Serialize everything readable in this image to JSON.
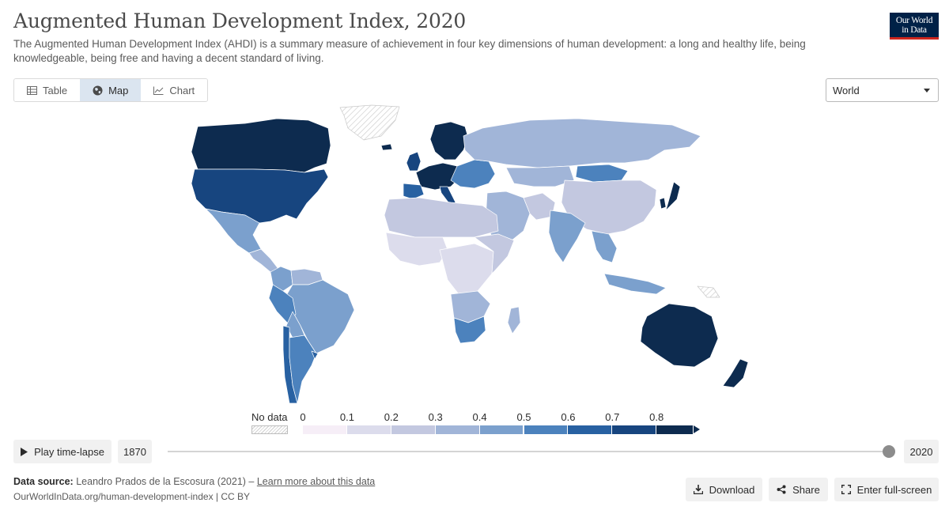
{
  "header": {
    "title": "Augmented Human Development Index, 2020",
    "subtitle": "The Augmented Human Development Index (AHDI) is a summary measure of achievement in four key dimensions of human development: a long and healthy life, being knowledgeable, being free and having a decent standard of living.",
    "logo_line1": "Our World",
    "logo_line2": "in Data"
  },
  "tabs": [
    {
      "label": "Table",
      "icon": "table-icon",
      "active": false
    },
    {
      "label": "Map",
      "icon": "globe-icon",
      "active": true
    },
    {
      "label": "Chart",
      "icon": "line-chart-icon",
      "active": false
    }
  ],
  "region_select": {
    "value": "World"
  },
  "legend": {
    "no_data_label": "No data",
    "ticks": [
      "0",
      "0.1",
      "0.2",
      "0.3",
      "0.4",
      "0.5",
      "0.6",
      "0.7",
      "0.8"
    ],
    "colors": [
      "#f6eef7",
      "#dcdcec",
      "#c3c8e0",
      "#a1b5d8",
      "#7ba0cd",
      "#4c82bd",
      "#2861a2",
      "#17457f",
      "#0d2b4f"
    ]
  },
  "map_data": {
    "year": 2020,
    "regions": [
      {
        "name": "Canada",
        "band": 8
      },
      {
        "name": "United States",
        "band": 7
      },
      {
        "name": "Mexico",
        "band": 4
      },
      {
        "name": "Central America",
        "band": 3
      },
      {
        "name": "Colombia",
        "band": 4
      },
      {
        "name": "Venezuela",
        "band": 3
      },
      {
        "name": "Brazil",
        "band": 4
      },
      {
        "name": "Peru",
        "band": 5
      },
      {
        "name": "Bolivia",
        "band": 4
      },
      {
        "name": "Chile",
        "band": 6
      },
      {
        "name": "Argentina",
        "band": 5
      },
      {
        "name": "Uruguay",
        "band": 6
      },
      {
        "name": "Greenland",
        "band": null
      },
      {
        "name": "Iceland",
        "band": 8
      },
      {
        "name": "Nordic countries",
        "band": 8
      },
      {
        "name": "United Kingdom",
        "band": 7
      },
      {
        "name": "Western Europe",
        "band": 8
      },
      {
        "name": "Spain",
        "band": 6
      },
      {
        "name": "Italy",
        "band": 7
      },
      {
        "name": "Eastern Europe",
        "band": 5
      },
      {
        "name": "Russia",
        "band": 3
      },
      {
        "name": "Kazakhstan",
        "band": 3
      },
      {
        "name": "Mongolia",
        "band": 5
      },
      {
        "name": "China",
        "band": 2
      },
      {
        "name": "Japan",
        "band": 8
      },
      {
        "name": "South Korea",
        "band": 8
      },
      {
        "name": "Middle East",
        "band": 3
      },
      {
        "name": "Iran",
        "band": 2
      },
      {
        "name": "India",
        "band": 4
      },
      {
        "name": "Southeast Asia",
        "band": 4
      },
      {
        "name": "Indonesia",
        "band": 4
      },
      {
        "name": "North Africa",
        "band": 2
      },
      {
        "name": "West Africa",
        "band": 1
      },
      {
        "name": "Central Africa",
        "band": 1
      },
      {
        "name": "East Africa",
        "band": 2
      },
      {
        "name": "Southern Africa",
        "band": 3
      },
      {
        "name": "South Africa",
        "band": 5
      },
      {
        "name": "Madagascar",
        "band": 3
      },
      {
        "name": "Australia",
        "band": 8
      },
      {
        "name": "New Zealand",
        "band": 8
      },
      {
        "name": "Papua New Guinea",
        "band": null
      }
    ]
  },
  "timeline": {
    "play_label": "Play time-lapse",
    "start_year": "1870",
    "end_year": "2020",
    "position": 1.0
  },
  "footer": {
    "source_label": "Data source:",
    "source_text": "Leandro Prados de la Escosura (2021) –",
    "learn_more": "Learn more about this data",
    "url": "OurWorldInData.org/human-development-index | CC BY"
  },
  "actions": {
    "download": "Download",
    "share": "Share",
    "fullscreen": "Enter full-screen"
  }
}
